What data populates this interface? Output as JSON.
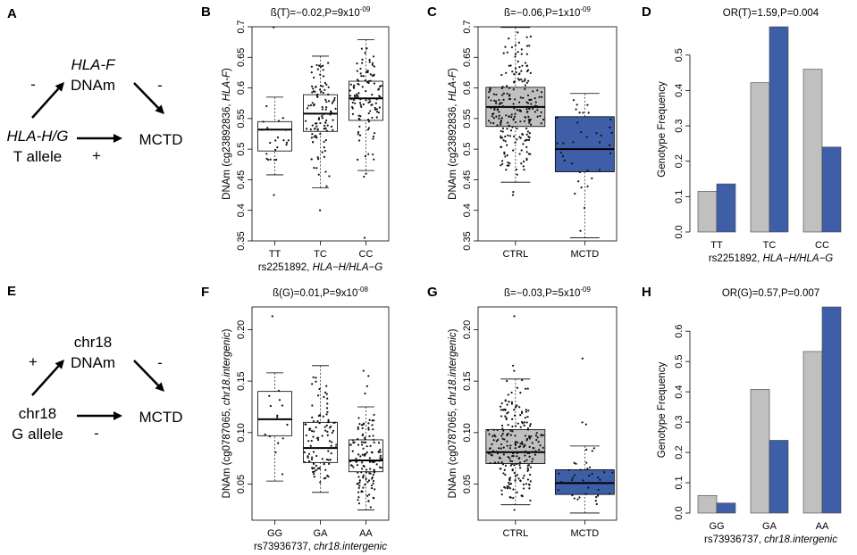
{
  "colors": {
    "ctrl": "#c0c0c0",
    "mctd": "#3f5ea8",
    "axis": "#000000",
    "point": "#111111"
  },
  "dags": [
    {
      "letter": "A",
      "mediator_line1": "HLA-F",
      "mediator_line2": "DNAm",
      "exposure_line1": "HLA-H/G",
      "exposure_line2": "T allele",
      "outcome": "MCTD",
      "sign_exposure_mediator": "-",
      "sign_mediator_outcome": "-",
      "sign_direct": "+"
    },
    {
      "letter": "E",
      "mediator_line1": "chr18",
      "mediator_line2": "DNAm",
      "exposure_line1": "chr18",
      "exposure_line2": "G allele",
      "outcome": "MCTD",
      "sign_exposure_mediator": "+",
      "sign_mediator_outcome": "-",
      "sign_direct": "-"
    }
  ],
  "chart_data": [
    {
      "letter": "B",
      "type": "box",
      "title": "ß(T)=−0.02,P=9x10",
      "title_sup": "-09",
      "ylabel": "DNAm (cg23892836, ",
      "ylabel_ital": "HLA-F",
      "ylabel_end": ")",
      "xlabel": "rs2251892, ",
      "xlabel_ital": "HLA−H/HLA−G",
      "ylim": [
        0.35,
        0.7
      ],
      "yticks": [
        "0.35",
        "0.4",
        "0.45",
        "0.5",
        "0.55",
        "0.6",
        "0.65",
        "0.7"
      ],
      "yticks_val": [
        0.35,
        0.4,
        0.45,
        0.5,
        0.55,
        0.6,
        0.65,
        0.7
      ],
      "categories": [
        "TT",
        "TC",
        "CC"
      ],
      "boxes": [
        {
          "min": 0.458,
          "q1": 0.497,
          "median": 0.532,
          "q3": 0.545,
          "max": 0.585,
          "n": 22,
          "fill": "#ffffff",
          "seed": 11,
          "outliers": [
            0.699,
            0.425
          ]
        },
        {
          "min": 0.437,
          "q1": 0.529,
          "median": 0.558,
          "q3": 0.589,
          "max": 0.652,
          "n": 110,
          "fill": "#ffffff",
          "seed": 23,
          "outliers": [
            0.4
          ]
        },
        {
          "min": 0.465,
          "q1": 0.547,
          "median": 0.583,
          "q3": 0.611,
          "max": 0.679,
          "n": 110,
          "fill": "#ffffff",
          "seed": 37,
          "outliers": [
            0.355,
            0.46,
            0.455
          ]
        }
      ]
    },
    {
      "letter": "C",
      "type": "box",
      "title": "ß=−0.06,P=1x10",
      "title_sup": "-09",
      "ylabel": "DNAm (cg23892836, ",
      "ylabel_ital": "HLA-F",
      "ylabel_end": ")",
      "xlabel": "",
      "xlabel_ital": "",
      "ylim": [
        0.35,
        0.7
      ],
      "yticks": [
        "0.35",
        "0.4",
        "0.45",
        "0.5",
        "0.55",
        "0.6",
        "0.65",
        "0.7"
      ],
      "yticks_val": [
        0.35,
        0.4,
        0.45,
        0.5,
        0.55,
        0.6,
        0.65,
        0.7
      ],
      "categories": [
        "CTRL",
        "MCTD"
      ],
      "boxes": [
        {
          "min": 0.446,
          "q1": 0.537,
          "median": 0.569,
          "q3": 0.601,
          "max": 0.699,
          "n": 230,
          "fill": "#c0c0c0",
          "seed": 53,
          "outliers": [
            0.43,
            0.425
          ]
        },
        {
          "min": 0.355,
          "q1": 0.463,
          "median": 0.5,
          "q3": 0.553,
          "max": 0.591,
          "n": 36,
          "fill": "#3f5ea8",
          "seed": 71,
          "outliers": []
        }
      ]
    },
    {
      "letter": "D",
      "type": "bar",
      "title": "OR(T)=1.59,P=0.004",
      "title_sup": "",
      "ylabel": "Genotype Frequency",
      "ylabel_ital": "",
      "ylabel_end": "",
      "xlabel": "rs2251892, ",
      "xlabel_ital": "HLA−H/HLA−G",
      "ylim": [
        0,
        0.58
      ],
      "yticks": [
        "0.0",
        "0.1",
        "0.2",
        "0.3",
        "0.4",
        "0.5"
      ],
      "yticks_val": [
        0,
        0.1,
        0.2,
        0.3,
        0.4,
        0.5
      ],
      "categories": [
        "TT",
        "TC",
        "CC"
      ],
      "series": [
        {
          "name": "CTRL",
          "values": [
            0.115,
            0.422,
            0.46
          ]
        },
        {
          "name": "MCTD",
          "values": [
            0.136,
            0.58,
            0.24
          ]
        }
      ]
    },
    {
      "letter": "F",
      "type": "box",
      "title": "ß(G)=0.01,P=9x10",
      "title_sup": "-08",
      "ylabel": "DNAm (cg0787065, ",
      "ylabel_ital": "chr18.intergenic",
      "ylabel_end": ")",
      "xlabel": "rs73936737, ",
      "xlabel_ital": "chr18.intergenic",
      "ylim": [
        0.015,
        0.222
      ],
      "yticks": [
        "0.05",
        "0.10",
        "0.15",
        "0.20"
      ],
      "yticks_val": [
        0.05,
        0.1,
        0.15,
        0.2
      ],
      "categories": [
        "GG",
        "GA",
        "AA"
      ],
      "boxes": [
        {
          "min": 0.053,
          "q1": 0.097,
          "median": 0.113,
          "q3": 0.14,
          "max": 0.158,
          "n": 14,
          "fill": "#ffffff",
          "seed": 83,
          "outliers": [
            0.213
          ]
        },
        {
          "min": 0.042,
          "q1": 0.071,
          "median": 0.085,
          "q3": 0.11,
          "max": 0.165,
          "n": 100,
          "fill": "#ffffff",
          "seed": 97,
          "outliers": []
        },
        {
          "min": 0.025,
          "q1": 0.062,
          "median": 0.073,
          "q3": 0.093,
          "max": 0.125,
          "n": 130,
          "fill": "#ffffff",
          "seed": 109,
          "outliers": [
            0.138,
            0.145,
            0.155,
            0.16
          ]
        }
      ]
    },
    {
      "letter": "G",
      "type": "box",
      "title": "ß=−0.03,P=5x10",
      "title_sup": "-09",
      "ylabel": "DNAm (cg0787065, ",
      "ylabel_ital": "chr18.intergenic",
      "ylabel_end": ")",
      "xlabel": "",
      "xlabel_ital": "",
      "ylim": [
        0.015,
        0.222
      ],
      "yticks": [
        "0.05",
        "0.10",
        "0.15",
        "0.20"
      ],
      "yticks_val": [
        0.05,
        0.1,
        0.15,
        0.2
      ],
      "categories": [
        "CTRL",
        "MCTD"
      ],
      "boxes": [
        {
          "min": 0.03,
          "q1": 0.07,
          "median": 0.081,
          "q3": 0.103,
          "max": 0.152,
          "n": 230,
          "fill": "#c0c0c0",
          "seed": 127,
          "outliers": [
            0.213,
            0.165,
            0.16,
            0.025
          ]
        },
        {
          "min": 0.022,
          "q1": 0.04,
          "median": 0.051,
          "q3": 0.064,
          "max": 0.087,
          "n": 36,
          "fill": "#3f5ea8",
          "seed": 139,
          "outliers": [
            0.172,
            0.108,
            0.11
          ]
        }
      ]
    },
    {
      "letter": "H",
      "type": "bar",
      "title": "OR(G)=0.57,P=0.007",
      "title_sup": "",
      "ylabel": "Genotype Frequency",
      "ylabel_ital": "",
      "ylabel_end": "",
      "xlabel": "rs73936737, ",
      "xlabel_ital": "chr18.intergenic",
      "ylim": [
        0,
        0.68
      ],
      "yticks": [
        "0.0",
        "0.1",
        "0.2",
        "0.3",
        "0.4",
        "0.5",
        "0.6"
      ],
      "yticks_val": [
        0,
        0.1,
        0.2,
        0.3,
        0.4,
        0.5,
        0.6
      ],
      "categories": [
        "GG",
        "GA",
        "AA"
      ],
      "series": [
        {
          "name": "CTRL",
          "values": [
            0.058,
            0.408,
            0.533
          ]
        },
        {
          "name": "MCTD",
          "values": [
            0.033,
            0.24,
            0.68
          ]
        }
      ]
    }
  ]
}
